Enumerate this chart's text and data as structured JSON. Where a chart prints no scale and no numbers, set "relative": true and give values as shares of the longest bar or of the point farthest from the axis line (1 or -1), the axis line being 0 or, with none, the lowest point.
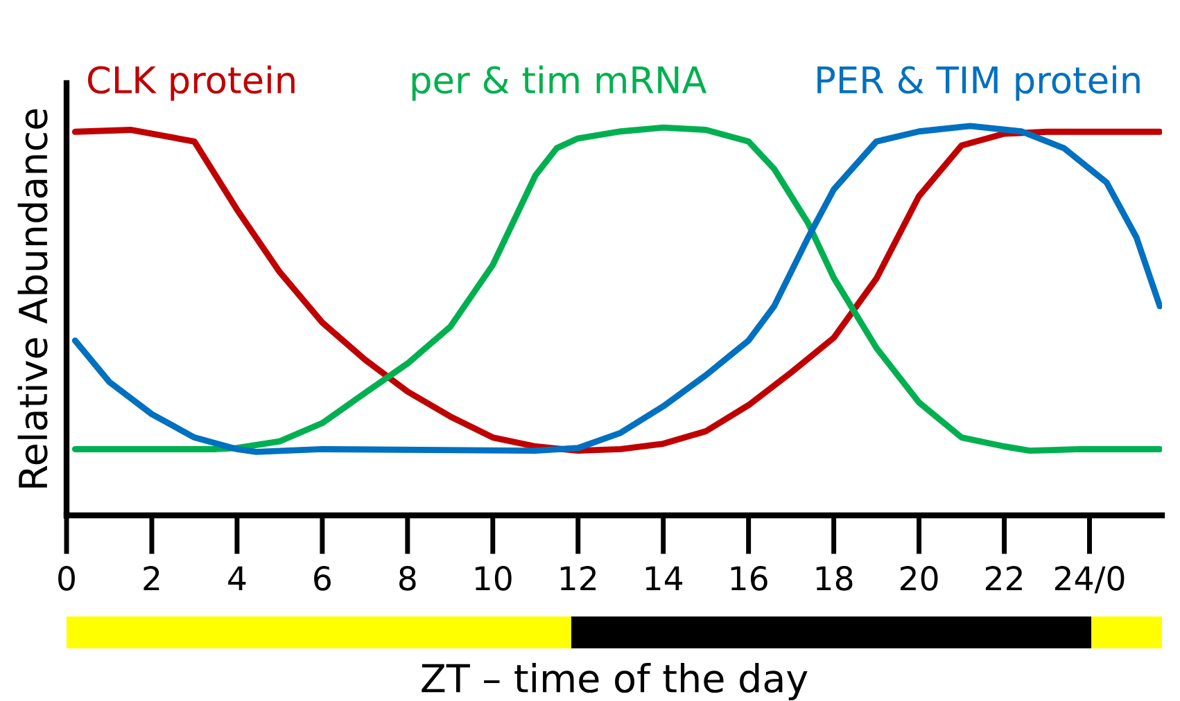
{
  "chart_data": {
    "type": "line",
    "relative": true,
    "xlabel": "ZT – time of the day",
    "ylabel": "Relative Abundance",
    "xlim": [
      0,
      25.7
    ],
    "xticks": [
      0,
      2,
      4,
      6,
      8,
      10,
      12,
      14,
      16,
      18,
      20,
      22,
      {
        "value": 24,
        "label": "24/0"
      }
    ],
    "grid": false,
    "legend": false,
    "marker": "none",
    "line_style": "solid",
    "series": [
      {
        "name": "CLK protein",
        "color": "#c00000",
        "x": [
          0.2,
          1.5,
          3,
          4,
          5,
          6,
          7,
          8,
          9,
          10,
          11,
          12,
          13,
          14,
          15,
          16,
          17,
          18,
          19,
          20,
          21,
          22,
          23,
          25.65
        ],
        "values": [
          0.985,
          0.99,
          0.96,
          0.785,
          0.625,
          0.495,
          0.4,
          0.318,
          0.254,
          0.2,
          0.177,
          0.166,
          0.17,
          0.184,
          0.216,
          0.283,
          0.367,
          0.456,
          0.608,
          0.82,
          0.95,
          0.98,
          0.985,
          0.985
        ]
      },
      {
        "name": "per & tim mRNA",
        "color": "#00b050",
        "x": [
          0.2,
          3.5,
          4,
          5,
          6,
          7,
          8,
          9,
          10,
          11,
          11.5,
          12,
          13,
          14,
          15,
          16,
          16.6,
          17.4,
          18,
          19,
          20,
          21,
          22,
          22.6,
          23.8,
          25.65
        ],
        "values": [
          0.17,
          0.17,
          0.173,
          0.19,
          0.237,
          0.314,
          0.39,
          0.484,
          0.643,
          0.873,
          0.943,
          0.968,
          0.986,
          0.996,
          0.99,
          0.96,
          0.89,
          0.75,
          0.61,
          0.43,
          0.29,
          0.2,
          0.177,
          0.166,
          0.17,
          0.17
        ]
      },
      {
        "name": "PER & TIM protein",
        "color": "#0070c0",
        "x": [
          0.2,
          1,
          2,
          3,
          4,
          4.45,
          6,
          11,
          12,
          13,
          14,
          15,
          16,
          16.6,
          17.4,
          18,
          19,
          20,
          21.2,
          22.4,
          23.4,
          24.4,
          25.1,
          25.65
        ],
        "values": [
          0.449,
          0.343,
          0.26,
          0.2,
          0.17,
          0.163,
          0.17,
          0.166,
          0.173,
          0.212,
          0.28,
          0.36,
          0.449,
          0.537,
          0.714,
          0.837,
          0.96,
          0.986,
          1.0,
          0.986,
          0.943,
          0.855,
          0.714,
          0.537
        ]
      }
    ]
  }
}
